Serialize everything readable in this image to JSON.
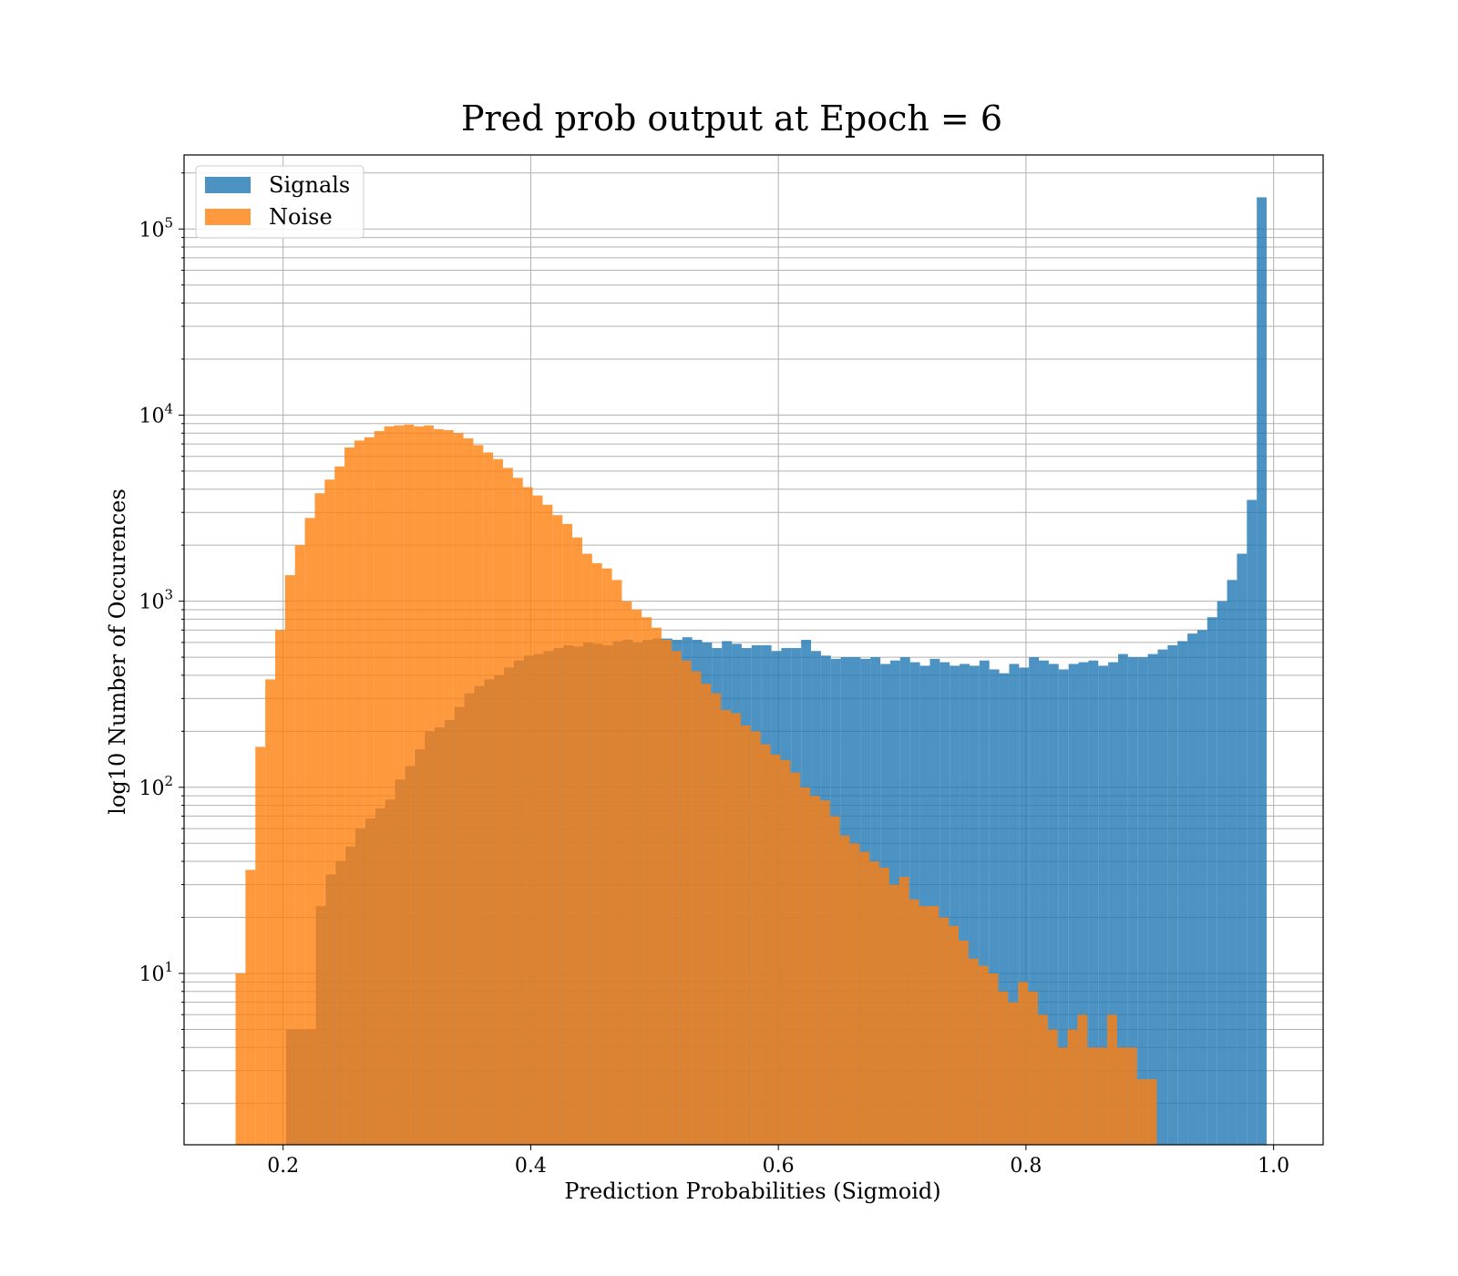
{
  "chart_data": {
    "type": "bar",
    "title": "Pred prob output at Epoch = 6",
    "xlabel": "Prediction Probabilities (Sigmoid)",
    "ylabel": "log10 Number of Occurences",
    "yscale": "log",
    "xlim": [
      0.12,
      1.04
    ],
    "ylim": [
      1.2,
      250000
    ],
    "grid": true,
    "legend_position": "top-left",
    "x_ticks": [
      {
        "value": 0.2,
        "label": "0.2"
      },
      {
        "value": 0.4,
        "label": "0.4"
      },
      {
        "value": 0.6,
        "label": "0.6"
      },
      {
        "value": 0.8,
        "label": "0.8"
      },
      {
        "value": 1.0,
        "label": "1.0"
      }
    ],
    "y_ticks": [
      {
        "value": 10,
        "base": "10",
        "exp": "1"
      },
      {
        "value": 100,
        "base": "10",
        "exp": "2"
      },
      {
        "value": 1000,
        "base": "10",
        "exp": "3"
      },
      {
        "value": 10000,
        "base": "10",
        "exp": "4"
      },
      {
        "value": 100000,
        "base": "10",
        "exp": "5"
      }
    ],
    "series": [
      {
        "name": "Signals",
        "color": "#1f77b4",
        "opacity": 0.8,
        "bin_start": 0.2024,
        "bin_width": 0.008,
        "values": [
          5,
          5,
          5,
          23,
          34,
          40,
          48,
          60,
          68,
          77,
          86,
          110,
          130,
          160,
          200,
          210,
          230,
          270,
          320,
          350,
          380,
          400,
          440,
          480,
          510,
          520,
          540,
          560,
          580,
          570,
          600,
          590,
          580,
          610,
          620,
          600,
          620,
          630,
          630,
          620,
          640,
          620,
          600,
          560,
          610,
          590,
          560,
          580,
          580,
          540,
          560,
          560,
          620,
          540,
          510,
          490,
          500,
          500,
          490,
          500,
          460,
          480,
          500,
          470,
          450,
          490,
          470,
          450,
          460,
          450,
          480,
          430,
          410,
          460,
          440,
          500,
          480,
          460,
          430,
          460,
          470,
          480,
          450,
          470,
          520,
          500,
          500,
          520,
          550,
          580,
          610,
          670,
          700,
          820,
          1000,
          1300,
          1800,
          3500,
          148000
        ]
      },
      {
        "name": "Noise",
        "color": "#ff7f0e",
        "opacity": 0.8,
        "bin_start": 0.1616,
        "bin_width": 0.008,
        "values": [
          10,
          36,
          165,
          380,
          700,
          1380,
          2000,
          2800,
          3800,
          4500,
          5300,
          6700,
          7300,
          7600,
          8200,
          8700,
          8800,
          8900,
          8700,
          8800,
          8400,
          8300,
          8000,
          7500,
          6900,
          6300,
          5800,
          5200,
          4600,
          4100,
          3700,
          3300,
          2900,
          2600,
          2200,
          1800,
          1600,
          1500,
          1300,
          1000,
          900,
          820,
          720,
          620,
          540,
          480,
          420,
          360,
          320,
          260,
          250,
          215,
          200,
          170,
          150,
          140,
          120,
          100,
          90,
          85,
          70,
          55,
          50,
          45,
          40,
          37,
          30,
          33,
          25,
          23,
          23,
          20,
          18,
          15,
          12,
          11,
          10,
          8,
          7,
          9,
          8,
          6,
          5,
          4,
          5,
          6,
          4,
          4,
          6,
          4,
          4,
          2.7,
          2.7
        ]
      }
    ]
  }
}
